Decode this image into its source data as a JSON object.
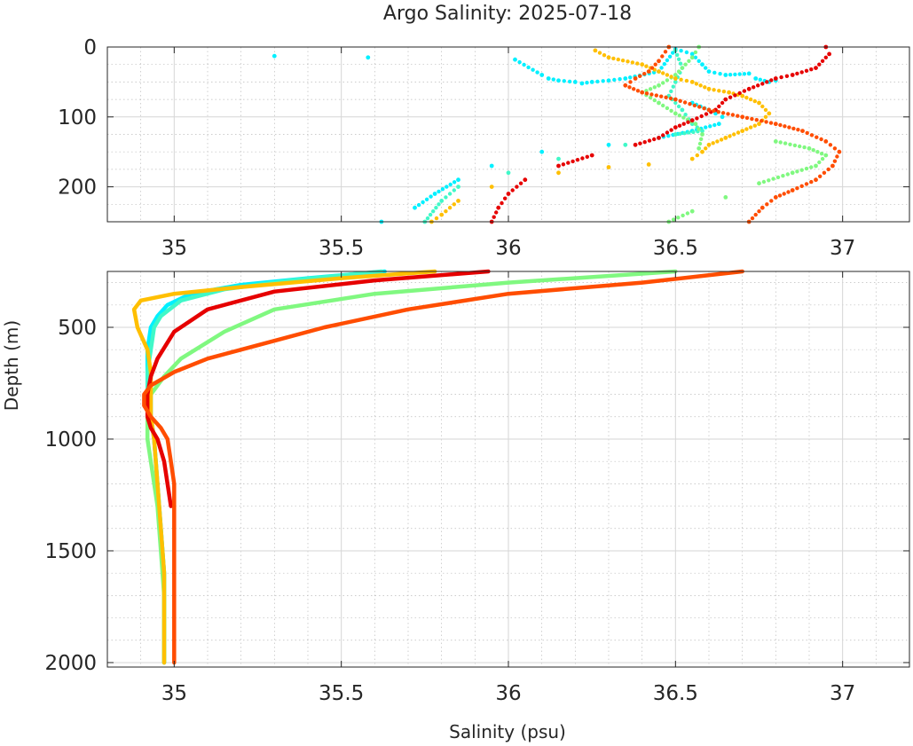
{
  "figure": {
    "title": "Argo Salinity: 2025-07-18",
    "xlabel": "Salinity (psu)",
    "ylabel": "Depth (m)"
  },
  "colors": {
    "axes": "#262626",
    "grid_major": "#d6d6d6",
    "grid_minor": "#bcbcbc",
    "background": "#ffffff"
  },
  "chart_data": [
    {
      "type": "scatter",
      "panel": "top",
      "xlim": [
        34.8,
        37.2
      ],
      "ylim": [
        0,
        250
      ],
      "y_reversed": true,
      "grid": true,
      "minor_grid": true,
      "xticks": [
        35,
        35.5,
        36,
        36.5,
        37
      ],
      "xtick_labels": [
        "35",
        "35.5",
        "36",
        "36.5",
        "37"
      ],
      "yticks": [
        0,
        100,
        200
      ],
      "ytick_labels": [
        "0",
        "100",
        "200"
      ],
      "series": [
        {
          "color": "#00f0ff",
          "points": [
            [
              35.3,
              13
            ],
            [
              35.58,
              15
            ],
            [
              36.02,
              18
            ],
            [
              36.1,
              40
            ],
            [
              36.12,
              45
            ],
            [
              36.15,
              48
            ],
            [
              36.2,
              50
            ],
            [
              36.22,
              52
            ],
            [
              36.25,
              50
            ],
            [
              36.3,
              48
            ],
            [
              36.35,
              45
            ],
            [
              36.45,
              35
            ],
            [
              36.5,
              3
            ],
            [
              36.55,
              10
            ],
            [
              36.58,
              25
            ],
            [
              36.6,
              35
            ],
            [
              36.65,
              40
            ],
            [
              36.72,
              38
            ],
            [
              36.74,
              45
            ],
            [
              36.78,
              50
            ],
            [
              36.8,
              48
            ],
            [
              36.55,
              80
            ],
            [
              36.6,
              90
            ],
            [
              36.62,
              95
            ],
            [
              36.64,
              100
            ],
            [
              36.63,
              110
            ],
            [
              36.55,
              120
            ],
            [
              36.45,
              130
            ],
            [
              36.3,
              140
            ],
            [
              36.1,
              150
            ],
            [
              35.95,
              170
            ],
            [
              35.85,
              190
            ],
            [
              35.78,
              210
            ],
            [
              35.72,
              230
            ],
            [
              35.62,
              250
            ]
          ]
        },
        {
          "color": "#40f8c8",
          "points": [
            [
              36.5,
              5
            ],
            [
              36.52,
              30
            ],
            [
              36.5,
              50
            ],
            [
              36.48,
              70
            ],
            [
              36.52,
              90
            ],
            [
              36.55,
              110
            ],
            [
              36.58,
              120
            ],
            [
              36.5,
              125
            ],
            [
              36.35,
              140
            ],
            [
              36.15,
              160
            ],
            [
              36.0,
              180
            ],
            [
              35.85,
              200
            ],
            [
              35.8,
              220
            ],
            [
              35.75,
              250
            ]
          ]
        },
        {
          "color": "#80f880",
          "points": [
            [
              36.57,
              0
            ],
            [
              36.55,
              15
            ],
            [
              36.5,
              40
            ],
            [
              36.45,
              55
            ],
            [
              36.4,
              65
            ],
            [
              36.45,
              80
            ],
            [
              36.5,
              95
            ],
            [
              36.56,
              110
            ],
            [
              36.58,
              125
            ],
            [
              36.57,
              145
            ],
            [
              36.8,
              135
            ],
            [
              36.9,
              145
            ],
            [
              36.95,
              155
            ],
            [
              36.92,
              170
            ],
            [
              36.85,
              180
            ],
            [
              36.75,
              195
            ],
            [
              36.65,
              215
            ],
            [
              36.55,
              235
            ],
            [
              36.48,
              250
            ]
          ]
        },
        {
          "color": "#ffbf00",
          "points": [
            [
              36.26,
              5
            ],
            [
              36.3,
              15
            ],
            [
              36.4,
              25
            ],
            [
              36.45,
              35
            ],
            [
              36.5,
              45
            ],
            [
              36.55,
              50
            ],
            [
              36.6,
              60
            ],
            [
              36.66,
              65
            ],
            [
              36.7,
              70
            ],
            [
              36.75,
              80
            ],
            [
              36.78,
              95
            ],
            [
              36.75,
              110
            ],
            [
              36.7,
              120
            ],
            [
              36.65,
              130
            ],
            [
              36.6,
              140
            ],
            [
              36.58,
              150
            ],
            [
              36.55,
              160
            ],
            [
              36.42,
              168
            ],
            [
              36.3,
              172
            ],
            [
              36.15,
              180
            ],
            [
              35.95,
              200
            ],
            [
              35.85,
              220
            ],
            [
              35.8,
              240
            ],
            [
              35.77,
              250
            ]
          ]
        },
        {
          "color": "#e60000",
          "points": [
            [
              36.95,
              0
            ],
            [
              36.96,
              10
            ],
            [
              36.92,
              30
            ],
            [
              36.85,
              40
            ],
            [
              36.8,
              45
            ],
            [
              36.72,
              60
            ],
            [
              36.65,
              75
            ],
            [
              36.62,
              90
            ],
            [
              36.55,
              105
            ],
            [
              36.5,
              115
            ],
            [
              36.45,
              130
            ],
            [
              36.38,
              140
            ],
            [
              36.25,
              155
            ],
            [
              36.15,
              170
            ],
            [
              36.05,
              190
            ],
            [
              36.0,
              210
            ],
            [
              35.97,
              230
            ],
            [
              35.95,
              250
            ]
          ]
        },
        {
          "color": "#ff4d00",
          "points": [
            [
              36.48,
              0
            ],
            [
              36.45,
              20
            ],
            [
              36.42,
              35
            ],
            [
              36.38,
              45
            ],
            [
              36.35,
              55
            ],
            [
              36.4,
              65
            ],
            [
              36.5,
              75
            ],
            [
              36.6,
              90
            ],
            [
              36.7,
              100
            ],
            [
              36.8,
              110
            ],
            [
              36.88,
              120
            ],
            [
              36.95,
              135
            ],
            [
              36.99,
              150
            ],
            [
              36.97,
              170
            ],
            [
              36.92,
              190
            ],
            [
              36.85,
              205
            ],
            [
              36.8,
              215
            ],
            [
              36.76,
              230
            ],
            [
              36.72,
              250
            ]
          ]
        }
      ]
    },
    {
      "type": "line",
      "panel": "bottom",
      "xlim": [
        34.8,
        37.2
      ],
      "ylim": [
        250,
        2020
      ],
      "y_reversed": true,
      "grid": true,
      "minor_grid": true,
      "xticks": [
        35,
        35.5,
        36,
        36.5,
        37
      ],
      "xtick_labels": [
        "35",
        "35.5",
        "36",
        "36.5",
        "37"
      ],
      "yticks": [
        500,
        1000,
        1500,
        2000
      ],
      "ytick_labels": [
        "500",
        "1000",
        "1500",
        "2000"
      ],
      "series": [
        {
          "color": "#00f0ff",
          "points": [
            [
              35.63,
              250
            ],
            [
              35.4,
              280
            ],
            [
              35.2,
              310
            ],
            [
              35.05,
              350
            ],
            [
              34.98,
              400
            ],
            [
              34.95,
              450
            ],
            [
              34.93,
              500
            ],
            [
              34.92,
              600
            ],
            [
              34.92,
              700
            ],
            [
              34.93,
              800
            ],
            [
              34.93,
              900
            ],
            [
              34.94,
              1000
            ],
            [
              34.95,
              1200
            ],
            [
              34.96,
              1400
            ],
            [
              34.97,
              1600
            ],
            [
              34.97,
              1800
            ],
            [
              34.97,
              2000
            ]
          ]
        },
        {
          "color": "#40f8c8",
          "points": [
            [
              35.62,
              250
            ],
            [
              35.35,
              290
            ],
            [
              35.15,
              330
            ],
            [
              35.02,
              380
            ],
            [
              34.96,
              450
            ],
            [
              34.94,
              500
            ],
            [
              34.93,
              600
            ],
            [
              34.92,
              700
            ],
            [
              34.92,
              800
            ],
            [
              34.93,
              900
            ],
            [
              34.94,
              1000
            ],
            [
              34.95,
              1200
            ],
            [
              34.96,
              1400
            ],
            [
              34.97,
              1600
            ],
            [
              34.97,
              1800
            ],
            [
              34.97,
              2000
            ]
          ]
        },
        {
          "color": "#80f880",
          "points": [
            [
              36.5,
              250
            ],
            [
              36.0,
              300
            ],
            [
              35.6,
              350
            ],
            [
              35.3,
              420
            ],
            [
              35.15,
              520
            ],
            [
              35.02,
              640
            ],
            [
              34.97,
              720
            ],
            [
              34.93,
              800
            ],
            [
              34.92,
              900
            ],
            [
              34.92,
              1000
            ],
            [
              34.93,
              1100
            ],
            [
              34.95,
              1300
            ],
            [
              34.96,
              1500
            ],
            [
              34.97,
              1700
            ],
            [
              34.97,
              2000
            ]
          ]
        },
        {
          "color": "#ffbf00",
          "points": [
            [
              35.78,
              250
            ],
            [
              35.5,
              280
            ],
            [
              35.2,
              320
            ],
            [
              35.0,
              350
            ],
            [
              34.9,
              380
            ],
            [
              34.88,
              420
            ],
            [
              34.89,
              500
            ],
            [
              34.92,
              600
            ],
            [
              34.93,
              700
            ],
            [
              34.93,
              800
            ],
            [
              34.93,
              900
            ],
            [
              34.94,
              1000
            ],
            [
              34.95,
              1200
            ],
            [
              34.96,
              1400
            ],
            [
              34.97,
              1600
            ],
            [
              34.97,
              1800
            ],
            [
              34.97,
              2000
            ]
          ]
        },
        {
          "color": "#e60000",
          "points": [
            [
              35.94,
              250
            ],
            [
              35.6,
              290
            ],
            [
              35.3,
              340
            ],
            [
              35.1,
              420
            ],
            [
              35.0,
              520
            ],
            [
              34.95,
              640
            ],
            [
              34.93,
              720
            ],
            [
              34.92,
              800
            ],
            [
              34.92,
              900
            ],
            [
              34.93,
              950
            ],
            [
              34.95,
              1000
            ],
            [
              34.97,
              1100
            ],
            [
              34.98,
              1200
            ],
            [
              34.99,
              1300
            ]
          ]
        },
        {
          "color": "#ff4d00",
          "points": [
            [
              36.7,
              250
            ],
            [
              36.4,
              300
            ],
            [
              36.0,
              350
            ],
            [
              35.7,
              420
            ],
            [
              35.45,
              500
            ],
            [
              35.25,
              580
            ],
            [
              35.1,
              640
            ],
            [
              35.0,
              700
            ],
            [
              34.93,
              760
            ],
            [
              34.91,
              800
            ],
            [
              34.91,
              850
            ],
            [
              34.93,
              900
            ],
            [
              34.96,
              950
            ],
            [
              34.98,
              1000
            ],
            [
              34.99,
              1100
            ],
            [
              35.0,
              1200
            ],
            [
              35.0,
              1400
            ],
            [
              35.0,
              1600
            ],
            [
              35.0,
              1800
            ],
            [
              35.0,
              2000
            ]
          ]
        }
      ]
    }
  ]
}
